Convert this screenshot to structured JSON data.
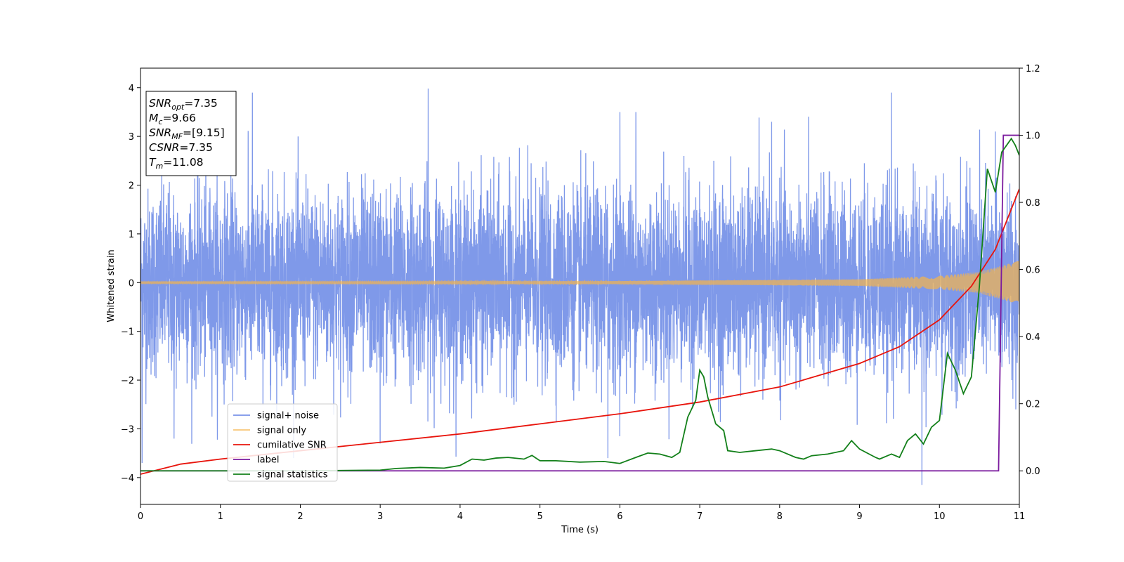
{
  "chart_data": {
    "type": "line",
    "xlabel": "Time (s)",
    "ylabel": "Whitened strain",
    "xlim": [
      0,
      11
    ],
    "ylim_left": [
      -4.55,
      4.4
    ],
    "ylim_right": [
      -0.1,
      1.2
    ],
    "xticks": [
      "0",
      "1",
      "2",
      "3",
      "4",
      "5",
      "6",
      "7",
      "8",
      "9",
      "10",
      "11"
    ],
    "yticks_left": [
      "−4",
      "−3",
      "−2",
      "−1",
      "0",
      "1",
      "2",
      "3",
      "4"
    ],
    "yticks_right": [
      "0.0",
      "0.2",
      "0.4",
      "0.6",
      "0.8",
      "1.0",
      "1.2"
    ],
    "grid": false,
    "legend_position": "lower-left",
    "annotation": {
      "lines": [
        {
          "main": "SNR",
          "sub": "opt",
          "rest": "=7.35"
        },
        {
          "main": "M",
          "sub": "c",
          "rest": "=9.66"
        },
        {
          "main": "SNR",
          "sub": "MF",
          "rest": "=[9.15]"
        },
        {
          "main": "CSNR",
          "sub": "",
          "rest": "=7.35"
        },
        {
          "main": "T",
          "sub": "m",
          "rest": "=11.08"
        }
      ]
    },
    "series": [
      {
        "name": "signal+ noise",
        "axis": "left",
        "color": "#7893e8",
        "description_kind": "noise",
        "noise_sigma": 0.95,
        "extreme_points": [
          {
            "x": 1.4,
            "y": 3.9
          },
          {
            "x": 3.6,
            "y": 3.98
          },
          {
            "x": 9.4,
            "y": 3.9
          },
          {
            "x": 9.78,
            "y": -4.15
          },
          {
            "x": 0.02,
            "y": -3.7
          },
          {
            "x": 5.85,
            "y": -3.6
          },
          {
            "x": 3.0,
            "y": -3.3
          },
          {
            "x": 0.42,
            "y": -3.2
          },
          {
            "x": 6.0,
            "y": 3.5
          },
          {
            "x": 6.2,
            "y": 3.5
          },
          {
            "x": 10.7,
            "y": 3.1
          },
          {
            "x": 7.9,
            "y": 3.3
          }
        ]
      },
      {
        "name": "signal only",
        "axis": "left",
        "color": "#f5b34a",
        "description_kind": "chirp",
        "envelope": [
          [
            0,
            0.02
          ],
          [
            6,
            0.03
          ],
          [
            9,
            0.07
          ],
          [
            10,
            0.14
          ],
          [
            10.5,
            0.22
          ],
          [
            11,
            0.45
          ]
        ]
      },
      {
        "name": "cumilative SNR",
        "axis": "right",
        "color": "#e8140c",
        "x": [
          0,
          0.5,
          1,
          2,
          3,
          4,
          5,
          6,
          7,
          8,
          9,
          9.5,
          10,
          10.4,
          10.7,
          11
        ],
        "y": [
          -0.01,
          0.02,
          0.035,
          0.06,
          0.085,
          0.11,
          0.14,
          0.17,
          0.205,
          0.25,
          0.32,
          0.37,
          0.45,
          0.55,
          0.66,
          0.84
        ]
      },
      {
        "name": "label",
        "axis": "right",
        "color": "#7b1a9e",
        "x": [
          0,
          10.74,
          10.8,
          11
        ],
        "y": [
          0,
          0,
          1,
          1
        ]
      },
      {
        "name": "signal statistics",
        "axis": "right",
        "color": "#13801a",
        "x": [
          0,
          1,
          2,
          3,
          3.2,
          3.5,
          3.8,
          4.0,
          4.15,
          4.3,
          4.45,
          4.6,
          4.8,
          4.9,
          5.0,
          5.2,
          5.5,
          5.8,
          6.0,
          6.2,
          6.35,
          6.5,
          6.65,
          6.75,
          6.85,
          6.95,
          7.0,
          7.05,
          7.1,
          7.2,
          7.3,
          7.35,
          7.5,
          7.7,
          7.9,
          8.0,
          8.2,
          8.3,
          8.4,
          8.6,
          8.8,
          8.9,
          9.0,
          9.2,
          9.25,
          9.4,
          9.5,
          9.6,
          9.7,
          9.8,
          9.9,
          10.0,
          10.1,
          10.2,
          10.3,
          10.4,
          10.5,
          10.6,
          10.7,
          10.78,
          10.9,
          10.95,
          11.0
        ],
        "y": [
          0,
          0,
          0,
          0.002,
          0.007,
          0.01,
          0.008,
          0.016,
          0.035,
          0.032,
          0.038,
          0.04,
          0.035,
          0.046,
          0.03,
          0.03,
          0.026,
          0.028,
          0.022,
          0.04,
          0.053,
          0.05,
          0.04,
          0.055,
          0.16,
          0.21,
          0.3,
          0.28,
          0.22,
          0.14,
          0.12,
          0.06,
          0.055,
          0.06,
          0.065,
          0.06,
          0.04,
          0.035,
          0.045,
          0.05,
          0.06,
          0.09,
          0.065,
          0.04,
          0.035,
          0.05,
          0.04,
          0.09,
          0.11,
          0.08,
          0.13,
          0.15,
          0.35,
          0.3,
          0.23,
          0.28,
          0.55,
          0.9,
          0.83,
          0.95,
          0.99,
          0.97,
          0.94
        ]
      }
    ]
  }
}
